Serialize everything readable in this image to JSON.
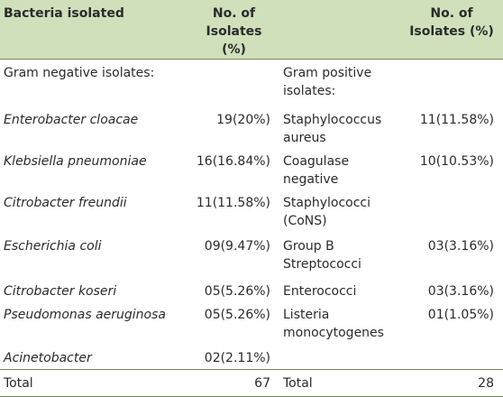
{
  "table": {
    "header": [
      "Bacteria isolated",
      "No. of Isolates (%)",
      "No. of Isolates (%)"
    ],
    "rows": [
      [
        "Gram negative isolates:",
        "",
        "Gram positive isolates:",
        ""
      ],
      [
        "Enterobacter cloacae",
        "19(20%)",
        "Staphylococcus aureus",
        "11(11.58%)"
      ],
      [
        "Klebsiella pneumoniae",
        "16(16.84%)",
        "Coagulase negative",
        "10(10.53%)"
      ],
      [
        "Citrobacter freundii",
        "11(11.58%)",
        "Staphylococci (CoNS)",
        ""
      ],
      [
        "Escherichia coli",
        "09(9.47%)",
        "Group B Streptococci",
        "03(3.16%)"
      ],
      [
        "Citrobacter koseri",
        "05(5.26%)",
        "Enterococci",
        "03(3.16%)"
      ],
      [
        "Pseudomonas aeruginosa",
        "05(5.26%)",
        "Listeria monocytogenes",
        "01(1.05%)"
      ],
      [
        "Acinetobacter",
        "02(2.11%)",
        "",
        ""
      ],
      [
        "Total",
        "67",
        "Total",
        "28"
      ]
    ]
  }
}
